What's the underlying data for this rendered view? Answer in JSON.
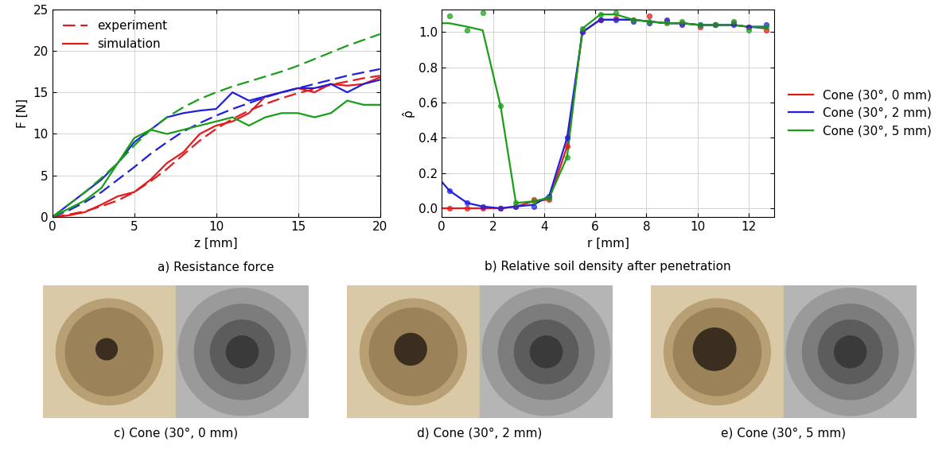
{
  "chart_data": [
    {
      "type": "line",
      "caption": "a) Resistance force",
      "x_label": "z [mm]",
      "y_label": "F [N]",
      "xlim": [
        0,
        20
      ],
      "xticks": [
        0,
        5,
        10,
        15,
        20
      ],
      "ylim": [
        0,
        25
      ],
      "yticks": [
        0,
        5,
        10,
        15,
        20,
        25
      ],
      "grid": true,
      "legend": "upper left",
      "x": [
        0,
        1,
        2,
        3,
        4,
        5,
        6,
        7,
        8,
        9,
        10,
        11,
        12,
        13,
        14,
        15,
        16,
        17,
        18,
        19,
        20
      ],
      "series": [
        {
          "name": "experiment",
          "color": "#e41a1c",
          "line_style": "dashed",
          "values": [
            0,
            0.3,
            0.7,
            1.3,
            2,
            3,
            4.3,
            5.8,
            7.5,
            9.2,
            10.6,
            11.8,
            12.8,
            13.6,
            14.3,
            14.9,
            15.4,
            15.9,
            16.3,
            16.7,
            17
          ]
        },
        {
          "name": "simulation",
          "color": "#e41a1c",
          "line_style": "solid",
          "values": [
            0,
            0.2,
            0.6,
            1.5,
            2.5,
            3,
            4.5,
            6.5,
            7.8,
            10,
            11,
            11.5,
            12.5,
            14.5,
            15,
            15.5,
            15,
            16,
            15.8,
            16,
            16.8
          ]
        },
        {
          "name": "experiment",
          "color": "#1f1fe0",
          "line_style": "dashed",
          "values": [
            0,
            0.8,
            1.8,
            3,
            4.5,
            6,
            7.6,
            9,
            10.3,
            11.3,
            12.2,
            13,
            13.7,
            14.4,
            15,
            15.5,
            16,
            16.5,
            17,
            17.4,
            17.8
          ]
        },
        {
          "name": "simulation",
          "color": "#1f1fe0",
          "line_style": "solid",
          "values": [
            0,
            1.5,
            3,
            4.5,
            6.5,
            9,
            10.5,
            12,
            12.5,
            12.8,
            13,
            15,
            14,
            14.5,
            15,
            15.5,
            15.5,
            16,
            15,
            16,
            16.5
          ]
        },
        {
          "name": "experiment",
          "color": "#1a9e1a",
          "line_style": "dashed",
          "values": [
            0,
            1.5,
            3,
            4.7,
            6.5,
            8.6,
            10.5,
            12,
            13.2,
            14.2,
            15,
            15.7,
            16.3,
            16.9,
            17.5,
            18.2,
            19,
            19.8,
            20.6,
            21.3,
            22
          ]
        },
        {
          "name": "simulation",
          "color": "#1a9e1a",
          "line_style": "solid",
          "values": [
            0,
            1,
            2,
            3.5,
            6.5,
            9.5,
            10.5,
            10,
            10.5,
            11,
            11.5,
            12,
            11,
            12,
            12.5,
            12.5,
            12,
            12.5,
            14,
            13.5,
            13.5
          ]
        }
      ]
    },
    {
      "type": "line",
      "caption": "b) Relative soil density after penetration",
      "x_label": "r [mm]",
      "y_label": "ρ̂",
      "xlim": [
        0,
        13
      ],
      "xticks": [
        0,
        2,
        4,
        6,
        8,
        10,
        12
      ],
      "ylim": [
        -0.05,
        1.13
      ],
      "yticks": [
        {
          "value": 0,
          "label": "0.0"
        },
        {
          "value": 0.2,
          "label": "0.2"
        },
        {
          "value": 0.4,
          "label": "0.4"
        },
        {
          "value": 0.6,
          "label": "0.6"
        },
        {
          "value": 0.8,
          "label": "0.8"
        },
        {
          "value": 1.0,
          "label": "1.0"
        }
      ],
      "grid": true,
      "legend": "right",
      "series": [
        {
          "name": "Cone (30°, 0 mm)",
          "color": "#e41a1c",
          "type": "line",
          "x": [
            0,
            0.3,
            1.0,
            1.6,
            2.3,
            2.9,
            3.6,
            4.2,
            4.9,
            5.5,
            6.2,
            6.8,
            7.5,
            8.1,
            8.8,
            9.4,
            10.1,
            10.7,
            11.4,
            12.0,
            12.7
          ],
          "values": [
            0,
            0,
            0,
            0,
            0,
            0.01,
            0.04,
            0.05,
            0.35,
            1.0,
            1.07,
            1.07,
            1.07,
            1.06,
            1.05,
            1.05,
            1.04,
            1.04,
            1.04,
            1.03,
            1.02
          ]
        },
        {
          "name": "Cone (30°, 2 mm)",
          "color": "#1f1fe0",
          "type": "line",
          "x": [
            0,
            0.3,
            1.0,
            1.6,
            2.3,
            2.9,
            3.6,
            4.2,
            4.9,
            5.5,
            6.2,
            6.8,
            7.5,
            8.1,
            8.8,
            9.4,
            10.1,
            10.7,
            11.4,
            12.0,
            12.7
          ],
          "values": [
            0.15,
            0.1,
            0.03,
            0.01,
            0,
            0.01,
            0.02,
            0.07,
            0.4,
            1.0,
            1.07,
            1.07,
            1.07,
            1.06,
            1.05,
            1.05,
            1.04,
            1.04,
            1.04,
            1.03,
            1.03
          ]
        },
        {
          "name": "Cone (30°, 5 mm)",
          "color": "#1a9e1a",
          "type": "line",
          "x": [
            0,
            0.3,
            1.0,
            1.6,
            2.3,
            2.9,
            3.6,
            4.2,
            4.9,
            5.5,
            6.2,
            6.8,
            7.5,
            8.1,
            8.8,
            9.4,
            10.1,
            10.7,
            11.4,
            12.0,
            12.7
          ],
          "values": [
            1.05,
            1.05,
            1.03,
            1.01,
            0.58,
            0.03,
            0.04,
            0.06,
            0.29,
            1.02,
            1.1,
            1.1,
            1.07,
            1.06,
            1.05,
            1.05,
            1.04,
            1.04,
            1.04,
            1.03,
            1.03
          ]
        },
        {
          "name": "Cone (30°, 0 mm)",
          "color": "#e41a1c",
          "type": "scatter",
          "marker": "o",
          "x": [
            0.3,
            1.0,
            1.6,
            2.3,
            2.9,
            3.6,
            4.2,
            4.9,
            5.5,
            6.2,
            6.8,
            7.5,
            8.1,
            8.8,
            9.4,
            10.1,
            10.7,
            11.4,
            12.0,
            12.7
          ],
          "values": [
            0,
            0,
            0,
            0,
            0.01,
            0.05,
            0.05,
            0.35,
            1.0,
            1.07,
            1.08,
            1.07,
            1.09,
            1.06,
            1.05,
            1.03,
            1.04,
            1.05,
            1.03,
            1.01
          ]
        },
        {
          "name": "Cone (30°, 2 mm)",
          "color": "#1f1fe0",
          "type": "scatter",
          "marker": "o",
          "x": [
            0.3,
            1.0,
            1.6,
            2.3,
            2.9,
            3.6,
            4.2,
            4.9,
            5.5,
            6.2,
            6.8,
            7.5,
            8.1,
            8.8,
            9.4,
            10.1,
            10.7,
            11.4,
            12.0,
            12.7
          ],
          "values": [
            0.1,
            0.03,
            0.01,
            0,
            0.01,
            0.01,
            0.07,
            0.4,
            1.0,
            1.07,
            1.07,
            1.06,
            1.05,
            1.07,
            1.04,
            1.04,
            1.04,
            1.04,
            1.03,
            1.04
          ]
        },
        {
          "name": "Cone (30°, 5 mm)",
          "color": "#1a9e1a",
          "type": "scatter",
          "marker": "o",
          "x": [
            0.3,
            1.0,
            1.6,
            2.3,
            2.9,
            3.6,
            4.2,
            4.9,
            5.5,
            6.2,
            6.8,
            7.5,
            8.1,
            8.8,
            9.4,
            10.1,
            10.7,
            11.4,
            12.0,
            12.7
          ],
          "values": [
            1.09,
            1.01,
            1.11,
            0.58,
            0.03,
            0.04,
            0.06,
            0.29,
            1.02,
            1.1,
            1.11,
            1.07,
            1.06,
            1.05,
            1.06,
            1.04,
            1.04,
            1.06,
            1.01,
            1.03
          ]
        }
      ]
    }
  ],
  "image_panels": [
    {
      "caption": "c) Cone (30°, 0 mm)"
    },
    {
      "caption": "d) Cone (30°, 2 mm)"
    },
    {
      "caption": "e) Cone (30°, 5 mm)"
    }
  ]
}
